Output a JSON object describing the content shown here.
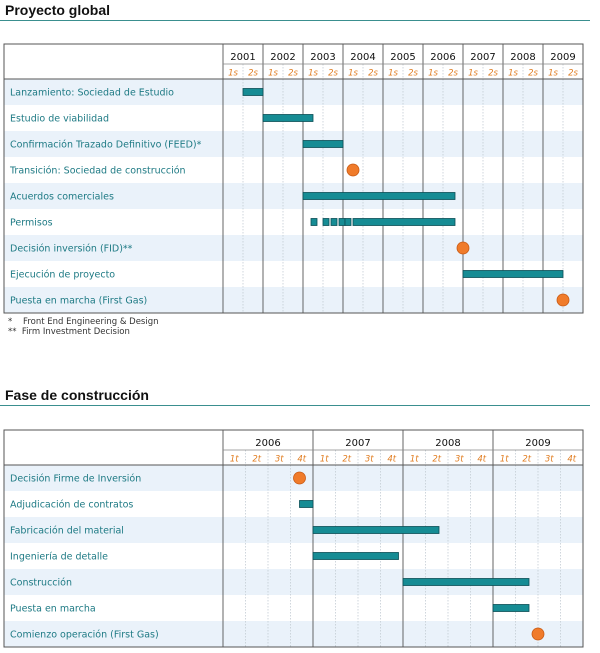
{
  "chart_data": [
    {
      "type": "gantt",
      "title": "Proyecto global",
      "years": [
        "2001",
        "2002",
        "2003",
        "2004",
        "2005",
        "2006",
        "2007",
        "2008",
        "2009"
      ],
      "sub_labels": [
        "1s",
        "2s"
      ],
      "tasks": [
        {
          "label": "Lanzamiento: Sociedad de Estudio",
          "bars": [
            [
              2001.5,
              2002.0
            ]
          ]
        },
        {
          "label": "Estudio de viabilidad",
          "bars": [
            [
              2002.0,
              2003.25
            ]
          ]
        },
        {
          "label": "Confirmación Trazado Definitivo (FEED)*",
          "bars": [
            [
              2003.0,
              2004.0
            ]
          ]
        },
        {
          "label": "Transición: Sociedad de construcción",
          "milestone": 2004.25
        },
        {
          "label": "Acuerdos comerciales",
          "bars": [
            [
              2003.0,
              2006.8
            ]
          ]
        },
        {
          "label": "Permisos",
          "bars": [
            [
              2003.2,
              2003.35
            ],
            [
              2003.5,
              2003.65
            ],
            [
              2003.7,
              2003.85
            ],
            [
              2003.9,
              2004.05
            ],
            [
              2004.05,
              2004.2
            ],
            [
              2004.25,
              2006.8
            ]
          ]
        },
        {
          "label": "Decisión inversión (FID)**",
          "milestone": 2007.0
        },
        {
          "label": "Ejecución de proyecto",
          "bars": [
            [
              2007.0,
              2009.5
            ]
          ]
        },
        {
          "label": "Puesta en marcha (First Gas)",
          "milestone": 2009.5
        }
      ],
      "notes": [
        "*    Front End Engineering & Design",
        "**  Firm Investment Decision"
      ]
    },
    {
      "type": "gantt",
      "title": "Fase de construcción",
      "years": [
        "2006",
        "2007",
        "2008",
        "2009"
      ],
      "sub_labels": [
        "1t",
        "2t",
        "3t",
        "4t"
      ],
      "tasks": [
        {
          "label": "Decisión Firme de Inversión",
          "milestone": 2006.85
        },
        {
          "label": "Adjudicación de contratos",
          "bars": [
            [
              2006.85,
              2007.0
            ]
          ]
        },
        {
          "label": "Fabricación del material",
          "bars": [
            [
              2007.0,
              2008.4
            ]
          ]
        },
        {
          "label": "Ingeniería de detalle",
          "bars": [
            [
              2007.0,
              2007.95
            ]
          ]
        },
        {
          "label": "Construcción",
          "bars": [
            [
              2008.0,
              2009.4
            ]
          ]
        },
        {
          "label": "Puesta en marcha",
          "bars": [
            [
              2009.0,
              2009.4
            ]
          ]
        },
        {
          "label": "Comienzo operación (First Gas)",
          "milestone": 2009.5
        }
      ]
    }
  ]
}
